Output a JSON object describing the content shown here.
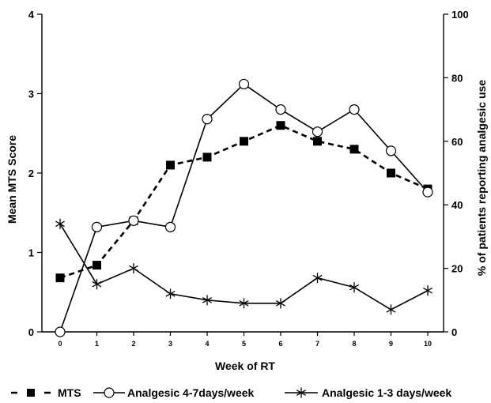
{
  "chart_data": {
    "type": "line",
    "title": "",
    "xlabel": "Week of RT",
    "ylabel_left": "Mean MTS Score",
    "ylabel_right": "% of patients reporting analgesic use",
    "x": [
      0,
      1,
      2,
      3,
      4,
      5,
      6,
      7,
      8,
      9,
      10
    ],
    "x_tick_labels": [
      "0",
      "1",
      "2",
      "3",
      "4",
      "5",
      "6",
      "7",
      "8",
      "9",
      "10"
    ],
    "ylim_left": [
      0,
      4
    ],
    "y_left_ticks": [
      "0",
      "1",
      "2",
      "3",
      "4"
    ],
    "ylim_right": [
      0,
      100
    ],
    "y_right_ticks": [
      "0",
      "20",
      "40",
      "60",
      "80",
      "100"
    ],
    "grid": false,
    "legend_position": "bottom",
    "series": [
      {
        "name": "MTS",
        "axis": "left",
        "style": "dashed",
        "marker": "filled-square",
        "values": [
          0.68,
          0.84,
          1.4,
          2.1,
          2.2,
          2.4,
          2.6,
          2.4,
          2.3,
          2.0,
          1.8
        ]
      },
      {
        "name": "Analgesic 4-7days/week",
        "axis": "right",
        "style": "solid",
        "marker": "open-circle",
        "values": [
          0,
          33,
          35,
          33,
          67,
          78,
          70,
          63,
          70,
          57,
          44
        ]
      },
      {
        "name": "Analgesic 1-3 days/week",
        "axis": "right",
        "style": "solid",
        "marker": "asterisk",
        "values": [
          34,
          15,
          20,
          12,
          10,
          9,
          9,
          17,
          14,
          7,
          13
        ]
      }
    ],
    "legend_labels": {
      "mts": "MTS",
      "analgesic_4_7": "Analgesic 4-7days/week",
      "analgesic_1_3": "Analgesic 1-3 days/week"
    }
  }
}
